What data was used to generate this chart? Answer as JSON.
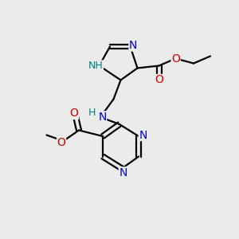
{
  "bg_color": "#ebebeb",
  "bond_color": "#000000",
  "N_color": "#0000cc",
  "NH_color": "#008080",
  "O_color": "#cc0000",
  "line_width": 1.6,
  "font_size": 10,
  "small_font": 9,
  "xlim": [
    0,
    10
  ],
  "ylim": [
    0,
    10
  ]
}
